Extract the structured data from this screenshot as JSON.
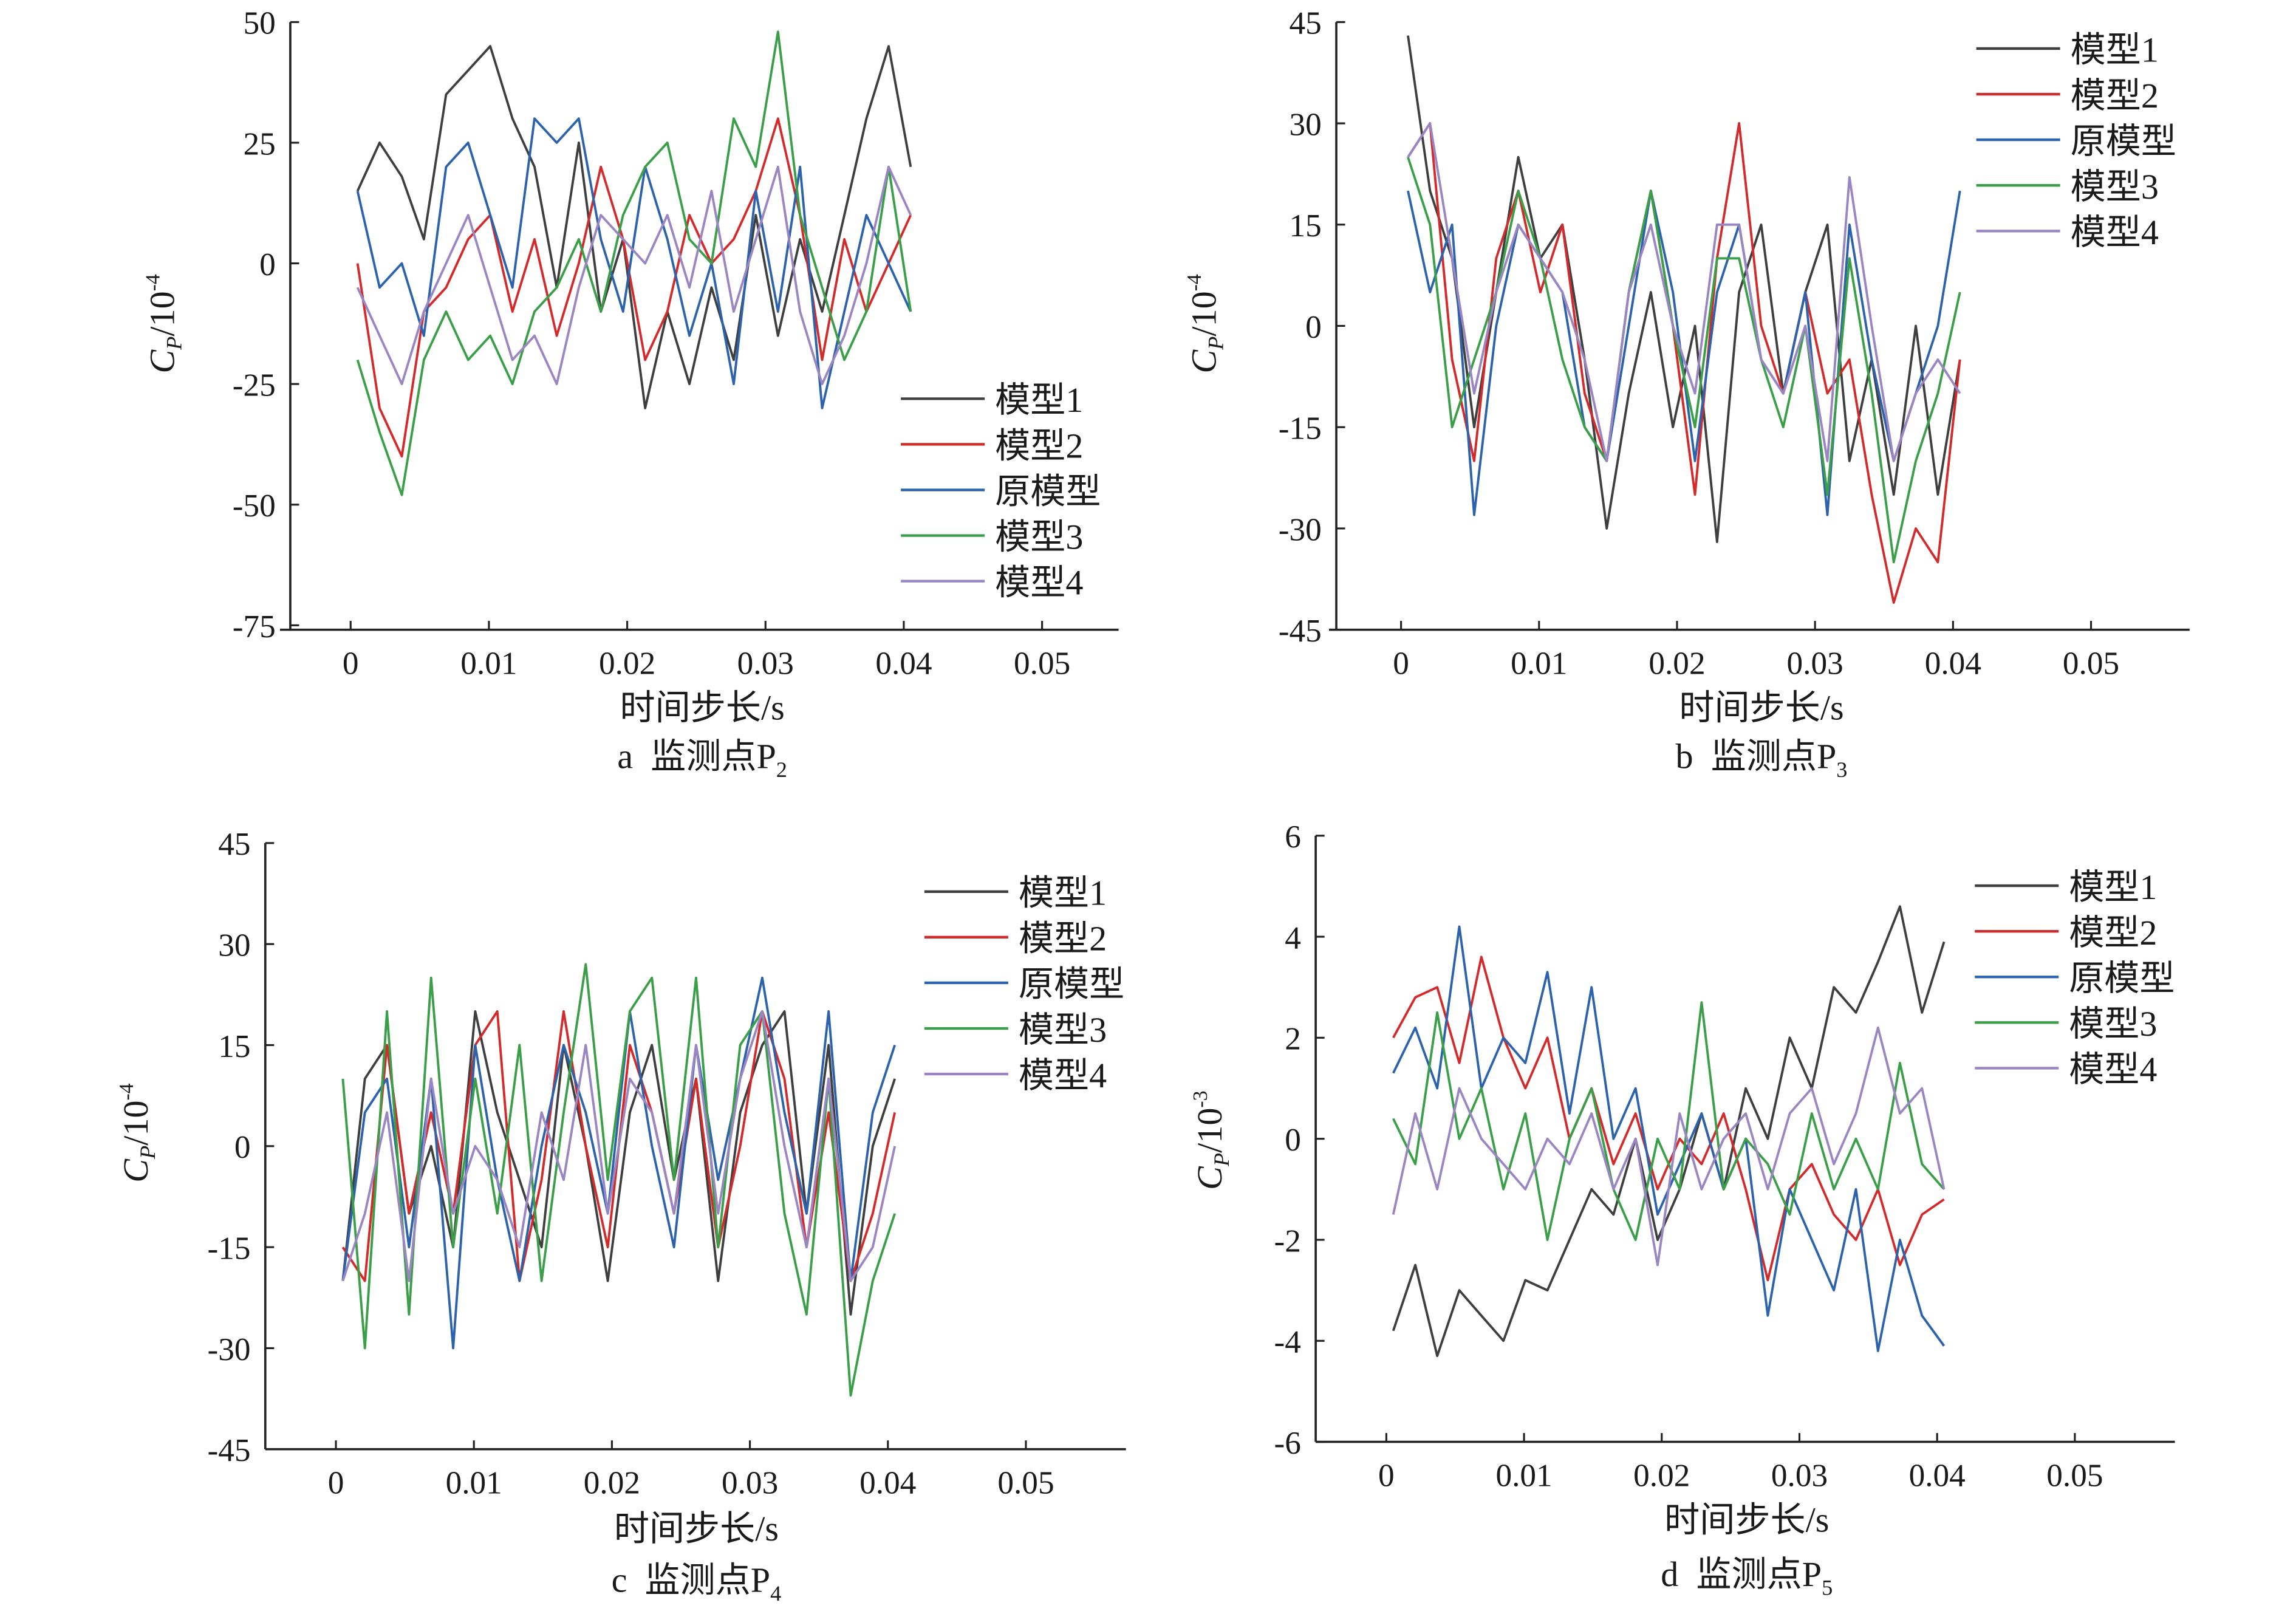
{
  "series_names": [
    "模型1",
    "模型2",
    "原模型",
    "模型3",
    "模型4"
  ],
  "colors": {
    "模型1": "#3f3f3f",
    "模型2": "#d32b2b",
    "原模型": "#2d63ad",
    "模型3": "#3a9f48",
    "模型4": "#9a86c2"
  },
  "chart_data": [
    {
      "type": "line",
      "id": "a",
      "caption": {
        "letter": "a",
        "text": "监测点P",
        "sub": "2"
      },
      "xlabel": "时间步长/s",
      "ylabel": {
        "main": "C",
        "sub": "P",
        "unit": "/10",
        "exp": "-4"
      },
      "xlim": [
        0,
        0.05
      ],
      "ylim": [
        -75,
        50
      ],
      "xticks": [
        0,
        0.01,
        0.02,
        0.03,
        0.04,
        0.05
      ],
      "xtick_labels": [
        "0",
        "0.01",
        "0.02",
        "0.03",
        "0.04",
        "0.05"
      ],
      "yticks": [
        50,
        25,
        0,
        -25,
        -50,
        -75
      ],
      "ytick_labels": [
        "50",
        "25",
        "0",
        "-25",
        "-50",
        "-75"
      ],
      "legend_position": "lower-right",
      "x": [
        0.0005,
        0.0021,
        0.0037,
        0.0053,
        0.0069,
        0.0085,
        0.0101,
        0.0117,
        0.0133,
        0.0149,
        0.0165,
        0.0181,
        0.0197,
        0.0213,
        0.0229,
        0.0245,
        0.0261,
        0.0277,
        0.0293,
        0.0309,
        0.0325,
        0.0341,
        0.0357,
        0.0373,
        0.0389,
        0.0405
      ],
      "series": [
        {
          "name": "模型1",
          "values": [
            15,
            25,
            18,
            5,
            35,
            40,
            45,
            30,
            20,
            -5,
            25,
            -10,
            5,
            -30,
            -10,
            -25,
            -5,
            -20,
            10,
            -15,
            5,
            -10,
            10,
            30,
            45,
            20
          ]
        },
        {
          "name": "模型2",
          "values": [
            0,
            -30,
            -40,
            -10,
            -5,
            5,
            10,
            -10,
            5,
            -15,
            0,
            20,
            5,
            -20,
            -10,
            10,
            0,
            5,
            15,
            30,
            10,
            -20,
            5,
            -10,
            0,
            10
          ]
        },
        {
          "name": "原模型",
          "values": [
            15,
            -5,
            0,
            -15,
            20,
            25,
            10,
            -5,
            30,
            25,
            30,
            5,
            -10,
            20,
            5,
            -15,
            0,
            -25,
            15,
            -10,
            20,
            -30,
            -10,
            10,
            0,
            -10
          ]
        },
        {
          "name": "模型3",
          "values": [
            -20,
            -35,
            -48,
            -20,
            -10,
            -20,
            -15,
            -25,
            -10,
            -5,
            5,
            -10,
            10,
            20,
            25,
            5,
            0,
            30,
            20,
            48,
            10,
            -5,
            -20,
            -10,
            20,
            -10
          ]
        },
        {
          "name": "模型4",
          "values": [
            -5,
            -15,
            -25,
            -10,
            0,
            10,
            -5,
            -20,
            -15,
            -25,
            -5,
            10,
            5,
            0,
            10,
            -5,
            15,
            -10,
            5,
            20,
            -10,
            -25,
            -15,
            0,
            20,
            10
          ]
        }
      ]
    },
    {
      "type": "line",
      "id": "b",
      "caption": {
        "letter": "b",
        "text": "监测点P",
        "sub": "3"
      },
      "xlabel": "时间步长/s",
      "ylabel": {
        "main": "C",
        "sub": "P",
        "unit": "/10",
        "exp": "-4"
      },
      "xlim": [
        0,
        0.05
      ],
      "ylim": [
        -45,
        45
      ],
      "xticks": [
        0,
        0.01,
        0.02,
        0.03,
        0.04,
        0.05
      ],
      "xtick_labels": [
        "0",
        "0.01",
        "0.02",
        "0.03",
        "0.04",
        "0.05"
      ],
      "yticks": [
        45,
        30,
        15,
        0,
        -15,
        -30,
        -45
      ],
      "ytick_labels": [
        "45",
        "30",
        "15",
        "0",
        "-15",
        "-30",
        "-45"
      ],
      "legend_position": "top-right",
      "x": [
        0.0005,
        0.0021,
        0.0037,
        0.0053,
        0.0069,
        0.0085,
        0.0101,
        0.0117,
        0.0133,
        0.0149,
        0.0165,
        0.0181,
        0.0197,
        0.0213,
        0.0229,
        0.0245,
        0.0261,
        0.0277,
        0.0293,
        0.0309,
        0.0325,
        0.0341,
        0.0357,
        0.0373,
        0.0389,
        0.0405
      ],
      "series": [
        {
          "name": "模型1",
          "values": [
            43,
            20,
            10,
            -15,
            5,
            25,
            10,
            15,
            -5,
            -30,
            -10,
            5,
            -15,
            0,
            -32,
            5,
            15,
            -10,
            5,
            15,
            -20,
            -5,
            -25,
            0,
            -25,
            -5
          ]
        },
        {
          "name": "模型2",
          "values": [
            25,
            30,
            -5,
            -20,
            10,
            20,
            5,
            15,
            -10,
            -20,
            5,
            20,
            0,
            -25,
            10,
            30,
            0,
            -10,
            5,
            -10,
            -5,
            -25,
            -41,
            -30,
            -35,
            -5
          ]
        },
        {
          "name": "原模型",
          "values": [
            20,
            5,
            15,
            -28,
            0,
            15,
            10,
            5,
            -15,
            -20,
            0,
            20,
            5,
            -20,
            5,
            15,
            -5,
            -10,
            5,
            -28,
            15,
            -5,
            -20,
            -10,
            0,
            20
          ]
        },
        {
          "name": "模型3",
          "values": [
            25,
            15,
            -15,
            -5,
            5,
            20,
            10,
            -5,
            -15,
            -20,
            5,
            20,
            0,
            -15,
            10,
            10,
            -5,
            -15,
            0,
            -25,
            10,
            -10,
            -35,
            -20,
            -10,
            5
          ]
        },
        {
          "name": "模型4",
          "values": [
            25,
            30,
            10,
            -10,
            5,
            15,
            10,
            5,
            -5,
            -20,
            5,
            15,
            0,
            -10,
            15,
            15,
            -5,
            -10,
            0,
            -20,
            22,
            0,
            -20,
            -10,
            -5,
            -10
          ]
        }
      ]
    },
    {
      "type": "line",
      "id": "c",
      "caption": {
        "letter": "c",
        "text": "监测点P",
        "sub": "4"
      },
      "xlabel": "时间步长/s",
      "ylabel": {
        "main": "C",
        "sub": "P",
        "unit": "/10",
        "exp": "-4"
      },
      "xlim": [
        0,
        0.05
      ],
      "ylim": [
        -45,
        45
      ],
      "xticks": [
        0,
        0.01,
        0.02,
        0.03,
        0.04,
        0.05
      ],
      "xtick_labels": [
        "0",
        "0.01",
        "0.02",
        "0.03",
        "0.04",
        "0.05"
      ],
      "yticks": [
        45,
        30,
        15,
        0,
        -15,
        -30,
        -45
      ],
      "ytick_labels": [
        "45",
        "30",
        "15",
        "0",
        "-15",
        "-30",
        "-45"
      ],
      "legend_position": "top-right",
      "x": [
        0.0005,
        0.0021,
        0.0037,
        0.0053,
        0.0069,
        0.0085,
        0.0101,
        0.0117,
        0.0133,
        0.0149,
        0.0165,
        0.0181,
        0.0197,
        0.0213,
        0.0229,
        0.0245,
        0.0261,
        0.0277,
        0.0293,
        0.0309,
        0.0325,
        0.0341,
        0.0357,
        0.0373,
        0.0389,
        0.0405
      ],
      "series": [
        {
          "name": "模型1",
          "values": [
            -20,
            10,
            15,
            -10,
            0,
            -15,
            20,
            5,
            -5,
            -15,
            15,
            0,
            -20,
            5,
            15,
            -5,
            10,
            -20,
            5,
            15,
            20,
            -10,
            15,
            -25,
            0,
            10
          ]
        },
        {
          "name": "模型2",
          "values": [
            -15,
            -20,
            15,
            -10,
            5,
            -10,
            15,
            20,
            -20,
            -5,
            20,
            0,
            -15,
            15,
            5,
            -10,
            10,
            -15,
            0,
            20,
            10,
            -15,
            5,
            -20,
            -10,
            5
          ]
        },
        {
          "name": "原模型",
          "values": [
            -20,
            5,
            10,
            -15,
            10,
            -30,
            15,
            -5,
            -20,
            0,
            15,
            5,
            -10,
            20,
            0,
            -15,
            15,
            -5,
            10,
            25,
            5,
            -10,
            20,
            -20,
            5,
            15
          ]
        },
        {
          "name": "模型3",
          "values": [
            10,
            -30,
            20,
            -25,
            25,
            -15,
            10,
            -10,
            15,
            -20,
            5,
            27,
            -5,
            20,
            25,
            -5,
            25,
            -15,
            15,
            20,
            -10,
            -25,
            10,
            -37,
            -20,
            -10
          ]
        },
        {
          "name": "模型4",
          "values": [
            -20,
            -10,
            5,
            -20,
            10,
            -10,
            0,
            -5,
            -15,
            5,
            -5,
            15,
            -10,
            10,
            5,
            -10,
            15,
            -10,
            10,
            20,
            0,
            -15,
            10,
            -20,
            -15,
            0
          ]
        }
      ]
    },
    {
      "type": "line",
      "id": "d",
      "caption": {
        "letter": "d",
        "text": "监测点P",
        "sub": "5"
      },
      "xlabel": "时间步长/s",
      "ylabel": {
        "main": "C",
        "sub": "P",
        "unit": "/10",
        "exp": "-3"
      },
      "xlim": [
        0,
        0.05
      ],
      "ylim": [
        -6,
        6
      ],
      "xticks": [
        0,
        0.01,
        0.02,
        0.03,
        0.04,
        0.05
      ],
      "xtick_labels": [
        "0",
        "0.01",
        "0.02",
        "0.03",
        "0.04",
        "0.05"
      ],
      "yticks": [
        6,
        4,
        2,
        0,
        -2,
        -4,
        -6
      ],
      "ytick_labels": [
        "6",
        "4",
        "2",
        "0",
        "-2",
        "-4",
        "-6"
      ],
      "legend_position": "top-right",
      "x": [
        0.0005,
        0.0021,
        0.0037,
        0.0053,
        0.0069,
        0.0085,
        0.0101,
        0.0117,
        0.0133,
        0.0149,
        0.0165,
        0.0181,
        0.0197,
        0.0213,
        0.0229,
        0.0245,
        0.0261,
        0.0277,
        0.0293,
        0.0309,
        0.0325,
        0.0341,
        0.0357,
        0.0373,
        0.0389,
        0.0405
      ],
      "series": [
        {
          "name": "模型1",
          "values": [
            -3.8,
            -2.5,
            -4.3,
            -3,
            -3.5,
            -4,
            -2.8,
            -3,
            -2,
            -1,
            -1.5,
            0,
            -2,
            -1,
            0.5,
            -1,
            1,
            0,
            2,
            1,
            3,
            2.5,
            3.5,
            4.6,
            2.5,
            3.9
          ]
        },
        {
          "name": "模型2",
          "values": [
            2,
            2.8,
            3,
            1.5,
            3.6,
            2,
            1,
            2,
            0,
            1,
            -0.5,
            0.5,
            -1,
            0,
            -0.5,
            0.5,
            -1,
            -2.8,
            -1,
            -0.5,
            -1.5,
            -2,
            -1,
            -2.5,
            -1.5,
            -1.2
          ]
        },
        {
          "name": "原模型",
          "values": [
            1.3,
            2.2,
            1,
            4.2,
            1,
            2,
            1.5,
            3.3,
            0.5,
            3,
            0,
            1,
            -1.5,
            -0.5,
            0.5,
            -1,
            0,
            -3.5,
            -1,
            -2,
            -3,
            -1,
            -4.2,
            -2,
            -3.5,
            -4.1
          ]
        },
        {
          "name": "模型3",
          "values": [
            0.4,
            -0.5,
            2.5,
            0,
            1,
            -1,
            0.5,
            -2,
            0,
            1,
            -1,
            -2,
            0,
            -1,
            2.7,
            -1,
            0,
            -0.5,
            -1.5,
            0.5,
            -1,
            0,
            -1,
            1.5,
            -0.5,
            -1
          ]
        },
        {
          "name": "模型4",
          "values": [
            -1.5,
            0.5,
            -1,
            1,
            0,
            -0.5,
            -1,
            0,
            -0.5,
            0.5,
            -1,
            0,
            -2.5,
            0.5,
            -1,
            0,
            0.5,
            -1,
            0.5,
            1,
            -0.5,
            0.5,
            2.2,
            0.5,
            1,
            -1
          ]
        }
      ]
    }
  ]
}
